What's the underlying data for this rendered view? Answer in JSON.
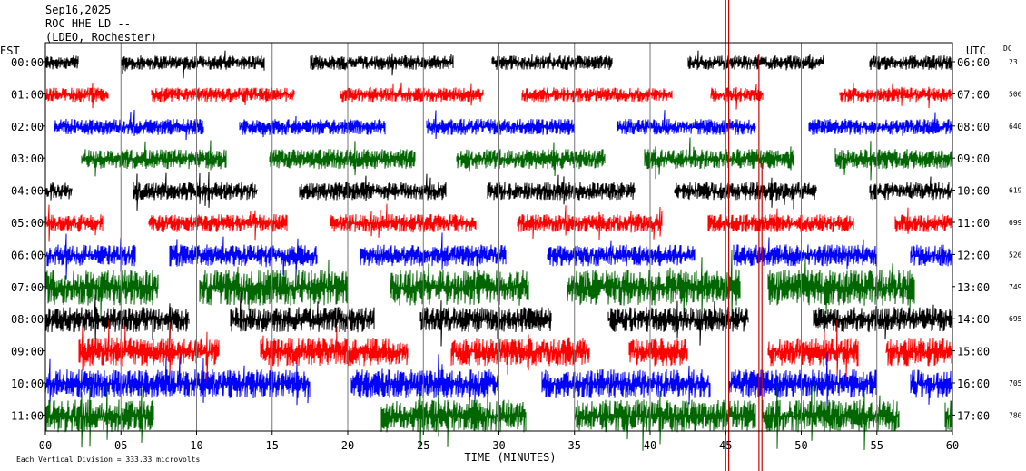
{
  "header": {
    "date": "Sep16,2025",
    "station": "ROC HHE LD --",
    "network": "(LDEO, Rochester)"
  },
  "chart_data": {
    "type": "line",
    "left_axis_label": "EST",
    "right_axis_label": "UTC",
    "dc_label": "DC",
    "xlabel": "TIME (MINUTES)",
    "footer": "Each Vertical Division = 333.33 microvolts",
    "x_ticks": [
      "00",
      "05",
      "10",
      "15",
      "20",
      "25",
      "30",
      "35",
      "40",
      "45",
      "50",
      "55",
      "60"
    ],
    "xlim": [
      0,
      60
    ],
    "rows": [
      {
        "est": "00:00",
        "utc": "06:00",
        "dc": "23",
        "color": "#000000",
        "amp": 8,
        "gaps": [
          [
            2.2,
            5.0
          ],
          [
            14.5,
            17.5
          ],
          [
            27,
            29.5
          ],
          [
            37.5,
            42.5
          ],
          [
            51.5,
            54.5
          ]
        ]
      },
      {
        "est": "01:00",
        "utc": "07:00",
        "dc": "506",
        "color": "#ff0000",
        "amp": 8,
        "gaps": [
          [
            4.2,
            7.0
          ],
          [
            16.5,
            19.5
          ],
          [
            29,
            31.5
          ],
          [
            41.5,
            44.0
          ],
          [
            47.5,
            52.5
          ]
        ]
      },
      {
        "est": "02:00",
        "utc": "08:00",
        "dc": "640",
        "color": "#0000ff",
        "amp": 9,
        "gaps": [
          [
            0,
            0.6
          ],
          [
            10.5,
            12.8
          ],
          [
            22.5,
            25.2
          ],
          [
            35,
            37.8
          ],
          [
            47,
            50.5
          ]
        ]
      },
      {
        "est": "03:00",
        "utc": "09:00",
        "dc": "",
        "color": "#006600",
        "amp": 11,
        "gaps": [
          [
            0,
            2.4
          ],
          [
            12,
            14.8
          ],
          [
            24.5,
            27.2
          ],
          [
            37,
            39.6
          ],
          [
            49.5,
            52.2
          ]
        ]
      },
      {
        "est": "04:00",
        "utc": "10:00",
        "dc": "619",
        "color": "#000000",
        "amp": 10,
        "gaps": [
          [
            1.8,
            5.8
          ],
          [
            14,
            16.8
          ],
          [
            26.5,
            29.2
          ],
          [
            39,
            41.6
          ],
          [
            51,
            54.5
          ]
        ]
      },
      {
        "est": "05:00",
        "utc": "11:00",
        "dc": "699",
        "color": "#ff0000",
        "amp": 10,
        "gaps": [
          [
            3.8,
            6.8
          ],
          [
            16,
            18.8
          ],
          [
            28.5,
            31.2
          ],
          [
            40.8,
            43.8
          ],
          [
            53.5,
            56.2
          ]
        ]
      },
      {
        "est": "06:00",
        "utc": "12:00",
        "dc": "526",
        "color": "#0000ff",
        "amp": 12,
        "gaps": [
          [
            6,
            8.2
          ],
          [
            18,
            20.8
          ],
          [
            30.5,
            33.2
          ],
          [
            43,
            45.5
          ],
          [
            55,
            57.2
          ]
        ]
      },
      {
        "est": "07:00",
        "utc": "13:00",
        "dc": "749",
        "color": "#006600",
        "amp": 20,
        "gaps": [
          [
            7.5,
            10.2
          ],
          [
            20,
            22.8
          ],
          [
            32,
            34.5
          ],
          [
            46,
            47.8
          ],
          [
            57.5,
            60
          ]
        ]
      },
      {
        "est": "08:00",
        "utc": "14:00",
        "dc": "695",
        "color": "#000000",
        "amp": 14,
        "gaps": [
          [
            9.5,
            12.2
          ],
          [
            21.8,
            24.8
          ],
          [
            33.5,
            37.2
          ],
          [
            46.5,
            50.8
          ]
        ]
      },
      {
        "est": "09:00",
        "utc": "15:00",
        "dc": "",
        "color": "#ff0000",
        "amp": 16,
        "gaps": [
          [
            0,
            2.2
          ],
          [
            11.5,
            14.2
          ],
          [
            24,
            26.8
          ],
          [
            36,
            38.6
          ],
          [
            42.5,
            47.8
          ],
          [
            53.8,
            55.6
          ]
        ]
      },
      {
        "est": "10:00",
        "utc": "16:00",
        "dc": "705",
        "color": "#0000ff",
        "amp": 16,
        "gaps": [
          [
            17.5,
            20.2
          ],
          [
            30,
            32.8
          ],
          [
            44,
            45.2
          ],
          [
            55,
            57.2
          ]
        ]
      },
      {
        "est": "11:00",
        "utc": "17:00",
        "dc": "780",
        "color": "#006600",
        "amp": 18,
        "gaps": [
          [
            7.2,
            22.2
          ],
          [
            31.8,
            35.0
          ],
          [
            47,
            47.4
          ],
          [
            56.5,
            59.5
          ]
        ]
      }
    ]
  }
}
